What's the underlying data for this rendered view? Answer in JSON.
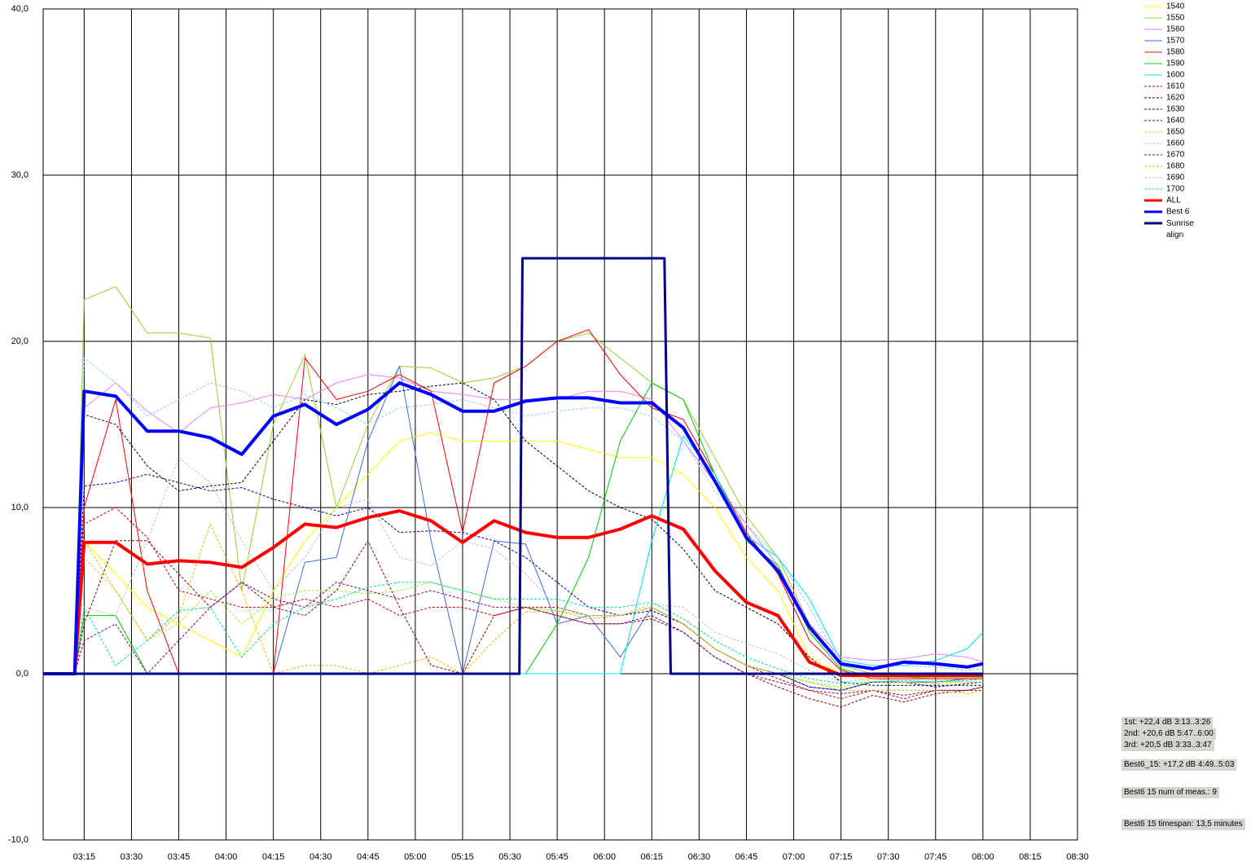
{
  "chart_data": {
    "type": "line",
    "x": [
      "03:02",
      "03:12",
      "03:15",
      "03:25",
      "03:35",
      "03:45",
      "03:55",
      "04:05",
      "04:15",
      "04:25",
      "04:35",
      "04:45",
      "04:55",
      "05:05",
      "05:15",
      "05:25",
      "05:35",
      "05:45",
      "05:55",
      "06:05",
      "06:15",
      "06:25",
      "06:35",
      "06:45",
      "06:55",
      "07:05",
      "07:15",
      "07:25",
      "07:35",
      "07:45",
      "07:55",
      "08:00"
    ],
    "xlim": [
      "03:02",
      "08:30"
    ],
    "xticks": [
      "03:15",
      "03:30",
      "03:45",
      "04:00",
      "04:15",
      "04:30",
      "04:45",
      "05:00",
      "05:15",
      "05:30",
      "05:45",
      "06:00",
      "06:15",
      "06:30",
      "06:45",
      "07:00",
      "07:15",
      "07:30",
      "07:45",
      "08:00",
      "08:15",
      "08:30"
    ],
    "ylim": [
      -10,
      40
    ],
    "yticks": [
      {
        "value": -10,
        "label": "-10,0"
      },
      {
        "value": 0,
        "label": "0,0"
      },
      {
        "value": 10,
        "label": "10,0"
      },
      {
        "value": 20,
        "label": "20,0"
      },
      {
        "value": 30,
        "label": "30,0"
      },
      {
        "value": 40,
        "label": "40,0"
      }
    ],
    "grid": true,
    "legend": "right",
    "series": [
      {
        "name": "1540",
        "color": "#ffff00",
        "dash": false,
        "line_width": 1,
        "values": [
          0,
          0,
          8,
          6,
          4,
          3,
          2,
          1,
          5,
          8,
          10,
          12,
          14,
          14.5,
          14,
          14,
          14,
          14,
          13.5,
          13,
          13,
          12,
          10,
          7,
          5,
          1,
          0,
          -0.5,
          -0.5,
          -0.5,
          -0.5,
          -0.5
        ]
      },
      {
        "name": "1550",
        "color": "#9acd32",
        "dash": false,
        "line_width": 1,
        "values": [
          0,
          0,
          22.5,
          23.3,
          20.5,
          20.5,
          20.2,
          5,
          15,
          19.2,
          10,
          15,
          18.5,
          18.4,
          17.5,
          17.8,
          18.5,
          20,
          20.5,
          19,
          17.5,
          16.5,
          13,
          9.5,
          7,
          3,
          0.5,
          0,
          -0.2,
          -0.3,
          -0.3,
          -0.3
        ]
      },
      {
        "name": "1560",
        "color": "#ee82ee",
        "dash": false,
        "line_width": 1,
        "values": [
          0,
          0,
          16,
          17.5,
          15.8,
          14.5,
          16,
          16.3,
          16.8,
          16.5,
          17.5,
          18,
          17.8,
          17,
          16.8,
          16.5,
          16.5,
          16.5,
          17,
          17,
          16.5,
          14,
          11.5,
          9,
          6.5,
          3,
          1,
          0.8,
          0.9,
          1.2,
          1,
          0.7
        ]
      },
      {
        "name": "1570",
        "color": "#4169e1",
        "dash": false,
        "line_width": 1,
        "values": [
          0,
          0,
          0,
          0,
          0,
          0,
          0,
          0,
          0,
          6.7,
          7,
          14,
          18.5,
          8,
          0,
          8,
          7.8,
          3,
          3.5,
          1,
          4,
          3,
          1.5,
          0.5,
          0,
          -0.8,
          -1,
          -0.5,
          -0.5,
          -0.5,
          -0.3,
          -0.3
        ]
      },
      {
        "name": "1580",
        "color": "#ff0000",
        "dash": false,
        "line_width": 1,
        "values": [
          0,
          0,
          10,
          16.5,
          5,
          0,
          0,
          0,
          0,
          19,
          16.5,
          17,
          18,
          17,
          8.5,
          17.5,
          18.5,
          20,
          20.7,
          18,
          16,
          15.3,
          12,
          8.5,
          6,
          2,
          0.2,
          -0.3,
          -0.3,
          -0.3,
          -0.3,
          -0.3
        ]
      },
      {
        "name": "1590",
        "color": "#00cc00",
        "dash": false,
        "line_width": 1,
        "values": [
          0,
          0,
          3.5,
          3.5,
          0,
          0,
          0,
          0,
          0,
          0,
          0,
          0,
          0,
          0,
          0,
          0,
          0,
          3,
          7,
          14,
          17.5,
          16.5,
          12,
          8,
          6.5,
          2.5,
          0.3,
          -0.2,
          -0.2,
          -0.2,
          -0.2,
          -0.2
        ]
      },
      {
        "name": "1600",
        "color": "#00e5ee",
        "dash": false,
        "line_width": 1,
        "values": [
          0,
          0,
          0,
          0,
          0,
          0,
          0,
          0,
          0,
          0,
          0,
          0,
          0,
          0,
          0,
          0,
          0,
          0,
          0,
          0,
          8,
          14.3,
          12,
          8.3,
          7,
          4.5,
          0.8,
          0.5,
          0.5,
          0.8,
          1.5,
          2.5
        ]
      },
      {
        "name": "1610",
        "color": "#cc0000",
        "dash": true,
        "line_width": 1,
        "values": [
          0,
          0,
          9,
          10,
          8.2,
          5,
          4.5,
          4,
          4,
          4.5,
          4,
          4.5,
          3.5,
          4,
          4,
          3.5,
          4,
          4,
          3.5,
          3.5,
          4,
          3,
          1.5,
          0.5,
          -0.3,
          -1,
          -1.5,
          -1,
          -1.5,
          -1,
          -1,
          -0.8
        ]
      },
      {
        "name": "1620",
        "color": "#000000",
        "dash": true,
        "line_width": 1,
        "values": [
          0,
          0,
          15.6,
          15,
          12.5,
          11,
          11.3,
          11.5,
          14,
          16.5,
          16.2,
          16.8,
          17,
          17.3,
          17.5,
          16.5,
          14,
          12.5,
          11,
          10,
          9.3,
          7.5,
          5,
          4,
          3,
          1,
          -0.5,
          -0.7,
          -0.7,
          -0.7,
          -0.7,
          -0.7
        ]
      },
      {
        "name": "1630",
        "color": "#0000aa",
        "dash": true,
        "line_width": 1,
        "values": [
          0,
          0,
          11.3,
          11.5,
          12,
          11.5,
          11,
          11.2,
          10.5,
          10,
          9.5,
          10,
          8.5,
          8.6,
          8.5,
          8,
          7,
          5.5,
          4,
          3.5,
          3.8,
          3,
          1.5,
          0.5,
          0,
          -0.8,
          -1,
          -0.5,
          -0.5,
          -0.8,
          -0.6,
          -0.5
        ]
      },
      {
        "name": "1640",
        "color": "#8b0000",
        "dash": true,
        "line_width": 1,
        "values": [
          0,
          0,
          3,
          8,
          8,
          6,
          4,
          5.5,
          4,
          3.5,
          5,
          8,
          4,
          0.5,
          0,
          3.5,
          4,
          3.5,
          3,
          3,
          3.3,
          2.5,
          1,
          0,
          -0.8,
          -1.5,
          -2,
          -1.3,
          -1.7,
          -1.2,
          -1,
          -1
        ]
      },
      {
        "name": "1650",
        "color": "#9aed32",
        "dash": true,
        "line_width": 1,
        "values": [
          0,
          0,
          7,
          5,
          2,
          3,
          5,
          3,
          4.5,
          5,
          5,
          4.8,
          5,
          5.5,
          5,
          4.5,
          4,
          3.8,
          3.5,
          3.5,
          4,
          3,
          1.5,
          0.5,
          0,
          -0.5,
          -0.8,
          -0.5,
          -0.5,
          -0.6,
          -0.5,
          -0.5
        ]
      },
      {
        "name": "1660",
        "color": "#87cefa",
        "dash": true,
        "line_width": 1,
        "values": [
          0,
          0,
          19,
          17.5,
          15.5,
          16.5,
          17.5,
          17,
          16,
          16.8,
          16,
          15,
          16,
          16.2,
          16.5,
          16,
          15.5,
          15.8,
          16,
          16,
          15.5,
          14,
          11,
          9,
          7,
          4,
          0.5,
          0.3,
          0.5,
          0.4,
          0.2,
          0.3
        ]
      },
      {
        "name": "1670",
        "color": "#800080",
        "dash": true,
        "line_width": 1,
        "values": [
          0,
          0,
          2,
          3,
          0,
          2,
          4,
          5.5,
          4.5,
          4,
          5.5,
          5,
          4.5,
          5,
          4.5,
          4,
          4,
          3.5,
          3,
          3,
          3.5,
          2.5,
          1,
          0,
          -0.5,
          -1,
          -1.2,
          -1,
          -1.3,
          -1,
          -1,
          -0.8
        ]
      },
      {
        "name": "1680",
        "color": "#e6b800",
        "dash": true,
        "line_width": 1,
        "values": [
          0,
          0,
          8,
          5,
          2,
          3.5,
          9,
          5,
          0,
          0.5,
          0.5,
          0,
          0.5,
          1,
          0,
          2,
          3.7,
          3.8,
          3.3,
          3.5,
          4,
          3,
          1.5,
          0.5,
          0,
          -0.5,
          -1,
          -1,
          -1,
          -1,
          -1.2,
          -1
        ]
      },
      {
        "name": "1690",
        "color": "#c0c0c0",
        "dash": true,
        "line_width": 1,
        "values": [
          0,
          0,
          4,
          3.5,
          8,
          13,
          11.5,
          8,
          5,
          7,
          10,
          10.5,
          7,
          6.5,
          8,
          7.5,
          6,
          4,
          3.5,
          3.5,
          4.2,
          4,
          2.5,
          1.8,
          1.2,
          0.2,
          -0.5,
          -0.3,
          -0.5,
          -0.4,
          -0.5,
          -0.5
        ]
      },
      {
        "name": "1700",
        "color": "#00d9a0",
        "dash": true,
        "line_width": 1,
        "values": [
          0,
          0,
          4,
          0.5,
          2,
          3.8,
          4,
          1,
          3,
          4,
          4.5,
          5.2,
          5.5,
          5.5,
          5,
          4.5,
          4.5,
          4.5,
          4,
          4,
          4.3,
          3.3,
          2,
          1,
          0.3,
          -0.3,
          -0.6,
          -0.5,
          -0.4,
          -0.5,
          -0.4,
          -0.3
        ]
      },
      {
        "name": "ALL",
        "color": "#ff0000",
        "dash": false,
        "line_width": 4,
        "values": [
          0,
          0,
          7.9,
          7.9,
          6.6,
          6.8,
          6.7,
          6.4,
          7.6,
          9,
          8.8,
          9.4,
          9.8,
          9.2,
          7.9,
          9.2,
          8.5,
          8.2,
          8.2,
          8.7,
          9.5,
          8.7,
          6.2,
          4.3,
          3.5,
          0.7,
          -0.1,
          -0.1,
          -0.1,
          -0.1,
          -0.1,
          -0.1
        ]
      },
      {
        "name": "Best 6",
        "color": "#0000ff",
        "dash": false,
        "line_width": 4,
        "values": [
          0,
          0,
          17,
          16.7,
          14.6,
          14.6,
          14.2,
          13.2,
          15.5,
          16.2,
          15,
          15.9,
          17.5,
          16.8,
          15.8,
          15.8,
          16.4,
          16.6,
          16.6,
          16.3,
          16.3,
          14.8,
          11.6,
          8.2,
          6.2,
          2.8,
          0.6,
          0.3,
          0.7,
          0.6,
          0.4,
          0.6
        ]
      },
      {
        "name": "Sunrise align",
        "color": "#00008b",
        "dash": false,
        "line_width": 3,
        "x": [
          "03:02",
          "05:33",
          "05:34",
          "06:19",
          "06:21",
          "08:00"
        ],
        "values": [
          0,
          0,
          25,
          25,
          0,
          0
        ]
      }
    ],
    "annotations": [
      "1st: +22,4 dB 3:13..3:26",
      "2nd: +20,6 dB 5:47..6:00",
      "3rd: +20,5 dB 3:33..3:47",
      "Best6_15: +17,2 dB 4:49..5:03",
      "Best6 15 num of meas.: 9",
      "Best6 15 timespan: 13,5 minutes"
    ]
  }
}
